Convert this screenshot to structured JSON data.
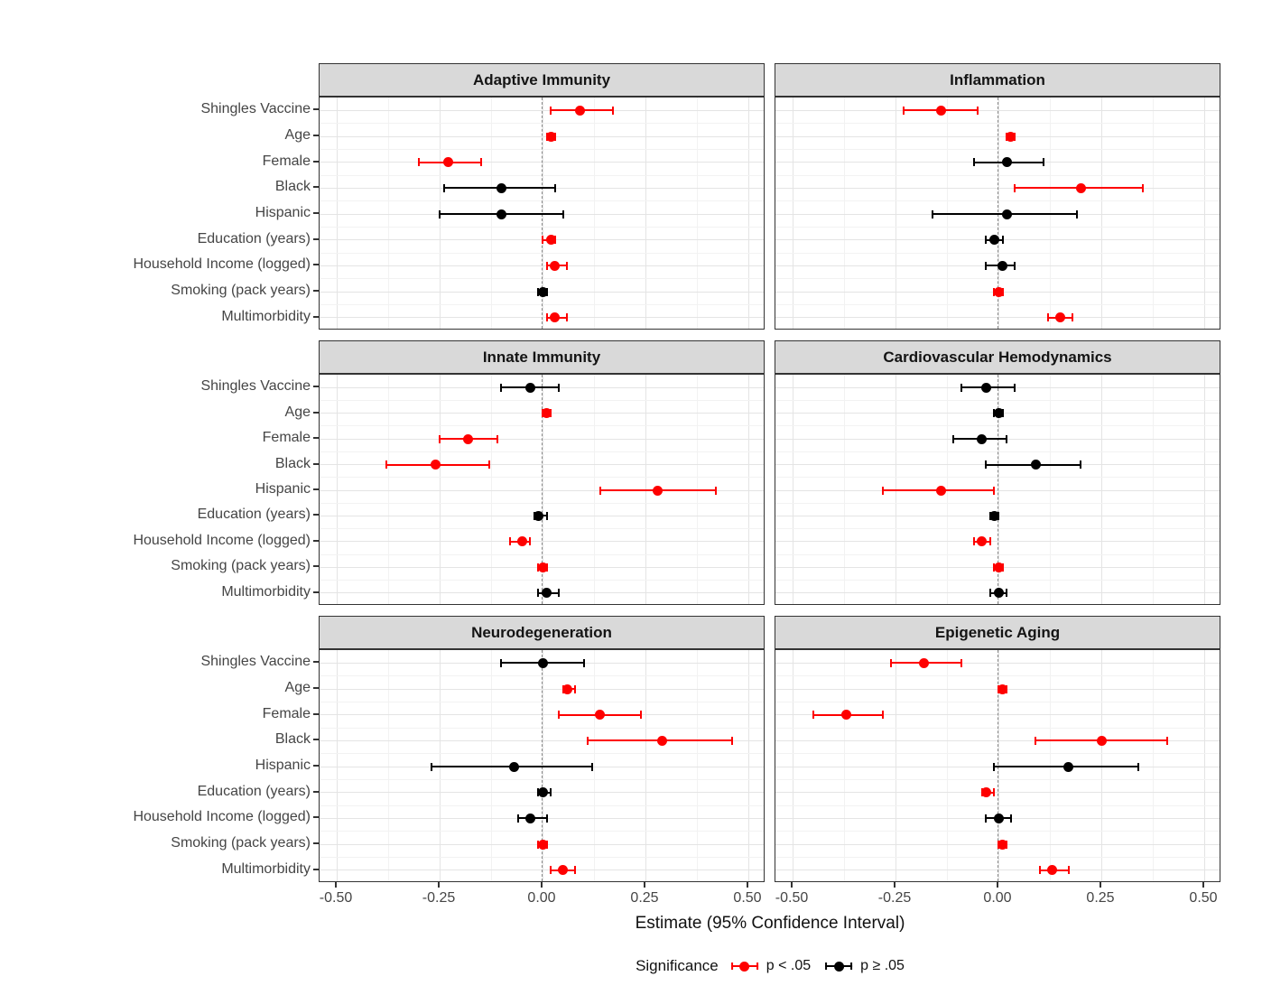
{
  "figure": {
    "x_axis_title": "Estimate (95% Confidence Interval)",
    "x_tick_labels": [
      "-0.50",
      "-0.25",
      "0.00",
      "0.25",
      "0.50"
    ],
    "legend": {
      "title": "Significance",
      "items": [
        {
          "label": "p < .05",
          "key": "significant",
          "color": "#fe0000"
        },
        {
          "label": "p ≥ .05",
          "key": "not-significant",
          "color": "#000000"
        }
      ]
    },
    "colors": {
      "significant": "#fe0000",
      "not_significant": "#000000",
      "strip_fill": "#d9d9d9",
      "panel_border": "#333333",
      "grid_major": "#e4e4e4",
      "grid_minor": "#f2f2f2",
      "zero_line": "#8a8a8a",
      "axis_text": "#454545"
    }
  },
  "chart_data": {
    "type": "dot-whisker",
    "xlabel": "Estimate (95% Confidence Interval)",
    "x_ticks": [
      -0.5,
      -0.25,
      0,
      0.25,
      0.5
    ],
    "x_minor_ticks": [
      -0.375,
      -0.125,
      0.125,
      0.375
    ],
    "xlim": [
      -0.542,
      0.542
    ],
    "grid": true,
    "zero_reference_line": 0,
    "legend_position": "bottom",
    "categories": [
      "Shingles Vaccine",
      "Age",
      "Female",
      "Black",
      "Hispanic",
      "Education (years)",
      "Household Income (logged)",
      "Smoking (pack years)",
      "Multimorbidity"
    ],
    "panels": [
      {
        "title": "Adaptive Immunity",
        "points": [
          {
            "term": "Shingles Vaccine",
            "estimate": 0.09,
            "ci_low": 0.02,
            "ci_high": 0.17,
            "significant": true
          },
          {
            "term": "Age",
            "estimate": 0.02,
            "ci_low": 0.01,
            "ci_high": 0.03,
            "significant": true
          },
          {
            "term": "Female",
            "estimate": -0.23,
            "ci_low": -0.3,
            "ci_high": -0.15,
            "significant": true
          },
          {
            "term": "Black",
            "estimate": -0.1,
            "ci_low": -0.24,
            "ci_high": 0.03,
            "significant": false
          },
          {
            "term": "Hispanic",
            "estimate": -0.1,
            "ci_low": -0.25,
            "ci_high": 0.05,
            "significant": false
          },
          {
            "term": "Education (years)",
            "estimate": 0.02,
            "ci_low": 0.0,
            "ci_high": 0.03,
            "significant": true
          },
          {
            "term": "Household Income (logged)",
            "estimate": 0.03,
            "ci_low": 0.01,
            "ci_high": 0.06,
            "significant": true
          },
          {
            "term": "Smoking (pack years)",
            "estimate": 0.0,
            "ci_low": -0.01,
            "ci_high": 0.01,
            "significant": false
          },
          {
            "term": "Multimorbidity",
            "estimate": 0.03,
            "ci_low": 0.01,
            "ci_high": 0.06,
            "significant": true
          }
        ]
      },
      {
        "title": "Inflammation",
        "points": [
          {
            "term": "Shingles Vaccine",
            "estimate": -0.14,
            "ci_low": -0.23,
            "ci_high": -0.05,
            "significant": true
          },
          {
            "term": "Age",
            "estimate": 0.03,
            "ci_low": 0.02,
            "ci_high": 0.04,
            "significant": true
          },
          {
            "term": "Female",
            "estimate": 0.02,
            "ci_low": -0.06,
            "ci_high": 0.11,
            "significant": false
          },
          {
            "term": "Black",
            "estimate": 0.2,
            "ci_low": 0.04,
            "ci_high": 0.35,
            "significant": true
          },
          {
            "term": "Hispanic",
            "estimate": 0.02,
            "ci_low": -0.16,
            "ci_high": 0.19,
            "significant": false
          },
          {
            "term": "Education (years)",
            "estimate": -0.01,
            "ci_low": -0.03,
            "ci_high": 0.01,
            "significant": false
          },
          {
            "term": "Household Income (logged)",
            "estimate": 0.01,
            "ci_low": -0.03,
            "ci_high": 0.04,
            "significant": false
          },
          {
            "term": "Smoking (pack years)",
            "estimate": 0.0,
            "ci_low": -0.01,
            "ci_high": 0.01,
            "significant": true
          },
          {
            "term": "Multimorbidity",
            "estimate": 0.15,
            "ci_low": 0.12,
            "ci_high": 0.18,
            "significant": true
          }
        ]
      },
      {
        "title": "Innate Immunity",
        "points": [
          {
            "term": "Shingles Vaccine",
            "estimate": -0.03,
            "ci_low": -0.1,
            "ci_high": 0.04,
            "significant": false
          },
          {
            "term": "Age",
            "estimate": 0.01,
            "ci_low": 0.0,
            "ci_high": 0.02,
            "significant": true
          },
          {
            "term": "Female",
            "estimate": -0.18,
            "ci_low": -0.25,
            "ci_high": -0.11,
            "significant": true
          },
          {
            "term": "Black",
            "estimate": -0.26,
            "ci_low": -0.38,
            "ci_high": -0.13,
            "significant": true
          },
          {
            "term": "Hispanic",
            "estimate": 0.28,
            "ci_low": 0.14,
            "ci_high": 0.42,
            "significant": true
          },
          {
            "term": "Education (years)",
            "estimate": -0.01,
            "ci_low": -0.02,
            "ci_high": 0.01,
            "significant": false
          },
          {
            "term": "Household Income (logged)",
            "estimate": -0.05,
            "ci_low": -0.08,
            "ci_high": -0.03,
            "significant": true
          },
          {
            "term": "Smoking (pack years)",
            "estimate": 0.0,
            "ci_low": -0.01,
            "ci_high": 0.01,
            "significant": true
          },
          {
            "term": "Multimorbidity",
            "estimate": 0.01,
            "ci_low": -0.01,
            "ci_high": 0.04,
            "significant": false
          }
        ]
      },
      {
        "title": "Cardiovascular Hemodynamics",
        "points": [
          {
            "term": "Shingles Vaccine",
            "estimate": -0.03,
            "ci_low": -0.09,
            "ci_high": 0.04,
            "significant": false
          },
          {
            "term": "Age",
            "estimate": 0.0,
            "ci_low": -0.01,
            "ci_high": 0.01,
            "significant": false
          },
          {
            "term": "Female",
            "estimate": -0.04,
            "ci_low": -0.11,
            "ci_high": 0.02,
            "significant": false
          },
          {
            "term": "Black",
            "estimate": 0.09,
            "ci_low": -0.03,
            "ci_high": 0.2,
            "significant": false
          },
          {
            "term": "Hispanic",
            "estimate": -0.14,
            "ci_low": -0.28,
            "ci_high": -0.01,
            "significant": true
          },
          {
            "term": "Education (years)",
            "estimate": -0.01,
            "ci_low": -0.02,
            "ci_high": 0.0,
            "significant": false
          },
          {
            "term": "Household Income (logged)",
            "estimate": -0.04,
            "ci_low": -0.06,
            "ci_high": -0.02,
            "significant": true
          },
          {
            "term": "Smoking (pack years)",
            "estimate": 0.0,
            "ci_low": -0.01,
            "ci_high": 0.01,
            "significant": true
          },
          {
            "term": "Multimorbidity",
            "estimate": 0.0,
            "ci_low": -0.02,
            "ci_high": 0.02,
            "significant": false
          }
        ]
      },
      {
        "title": "Neurodegeneration",
        "points": [
          {
            "term": "Shingles Vaccine",
            "estimate": 0.0,
            "ci_low": -0.1,
            "ci_high": 0.1,
            "significant": false
          },
          {
            "term": "Age",
            "estimate": 0.06,
            "ci_low": 0.05,
            "ci_high": 0.08,
            "significant": true
          },
          {
            "term": "Female",
            "estimate": 0.14,
            "ci_low": 0.04,
            "ci_high": 0.24,
            "significant": true
          },
          {
            "term": "Black",
            "estimate": 0.29,
            "ci_low": 0.11,
            "ci_high": 0.46,
            "significant": true
          },
          {
            "term": "Hispanic",
            "estimate": -0.07,
            "ci_low": -0.27,
            "ci_high": 0.12,
            "significant": false
          },
          {
            "term": "Education (years)",
            "estimate": 0.0,
            "ci_low": -0.01,
            "ci_high": 0.02,
            "significant": false
          },
          {
            "term": "Household Income (logged)",
            "estimate": -0.03,
            "ci_low": -0.06,
            "ci_high": 0.01,
            "significant": false
          },
          {
            "term": "Smoking (pack years)",
            "estimate": 0.0,
            "ci_low": -0.01,
            "ci_high": 0.01,
            "significant": true
          },
          {
            "term": "Multimorbidity",
            "estimate": 0.05,
            "ci_low": 0.02,
            "ci_high": 0.08,
            "significant": true
          }
        ]
      },
      {
        "title": "Epigenetic Aging",
        "points": [
          {
            "term": "Shingles Vaccine",
            "estimate": -0.18,
            "ci_low": -0.26,
            "ci_high": -0.09,
            "significant": true
          },
          {
            "term": "Age",
            "estimate": 0.01,
            "ci_low": 0.0,
            "ci_high": 0.02,
            "significant": true
          },
          {
            "term": "Female",
            "estimate": -0.37,
            "ci_low": -0.45,
            "ci_high": -0.28,
            "significant": true
          },
          {
            "term": "Black",
            "estimate": 0.25,
            "ci_low": 0.09,
            "ci_high": 0.41,
            "significant": true
          },
          {
            "term": "Hispanic",
            "estimate": 0.17,
            "ci_low": -0.01,
            "ci_high": 0.34,
            "significant": false
          },
          {
            "term": "Education (years)",
            "estimate": -0.03,
            "ci_low": -0.04,
            "ci_high": -0.01,
            "significant": true
          },
          {
            "term": "Household Income (logged)",
            "estimate": 0.0,
            "ci_low": -0.03,
            "ci_high": 0.03,
            "significant": false
          },
          {
            "term": "Smoking (pack years)",
            "estimate": 0.01,
            "ci_low": 0.0,
            "ci_high": 0.02,
            "significant": true
          },
          {
            "term": "Multimorbidity",
            "estimate": 0.13,
            "ci_low": 0.1,
            "ci_high": 0.17,
            "significant": true
          }
        ]
      }
    ]
  }
}
